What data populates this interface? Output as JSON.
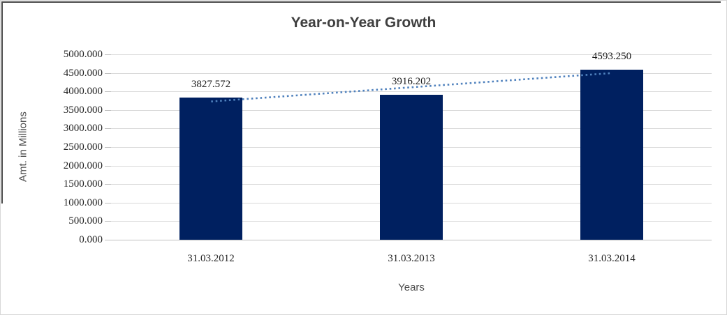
{
  "chart_data": {
    "type": "bar",
    "title": "Year-on-Year Growth",
    "categories": [
      "31.03.2012",
      "31.03.2013",
      "31.03.2014"
    ],
    "values": [
      3827.572,
      3916.202,
      4593.25
    ],
    "data_labels": [
      "3827.572",
      "3916.202",
      "4593.250"
    ],
    "xlabel": "Years",
    "ylabel": "Amt. in Millions",
    "ylim": [
      0,
      5000
    ],
    "ytick_step": 500,
    "ytick_decimals": 3,
    "grid": true,
    "legend_position": "none",
    "bar_color": "#002060",
    "gridline_color": "#d9d9d9",
    "axis_line_color": "#bfbfbf",
    "tick_label_color": "#262626",
    "title_color": "#3f3f3f",
    "axis_title_color": "#4d4d4d",
    "trendline": {
      "type": "linear",
      "style": "dotted",
      "color": "#4f81bd",
      "start_value": 3729.5,
      "end_value": 4495.2
    }
  }
}
